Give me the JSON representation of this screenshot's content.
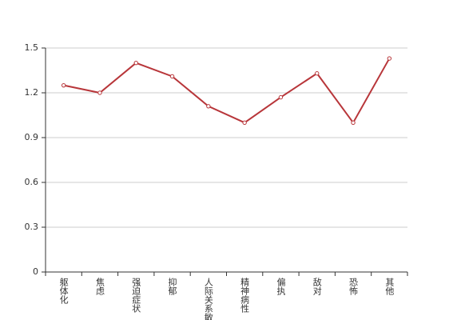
{
  "chart_data": {
    "type": "line",
    "categories": [
      "躯体化",
      "焦虑",
      "强迫症状",
      "抑郁",
      "人际关系敏感",
      "精神病性",
      "偏执",
      "敌对",
      "恐怖",
      "其他"
    ],
    "values": [
      1.25,
      1.2,
      1.4,
      1.31,
      1.11,
      1.0,
      1.17,
      1.33,
      1.0,
      1.43
    ],
    "color": "#b8363a",
    "ylim": [
      0,
      1.5
    ],
    "yticks": [
      0,
      0.3,
      0.6,
      0.9,
      1.2,
      1.5
    ],
    "grid": true
  }
}
